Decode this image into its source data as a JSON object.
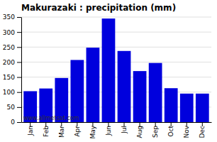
{
  "chart_data": {
    "type": "bar",
    "title": "Makurazaki : precipitation (mm)",
    "categories": [
      "Jan",
      "Feb",
      "Mar",
      "Apr",
      "May",
      "Jun",
      "Jul",
      "Aug",
      "Sep",
      "Oct",
      "Nov",
      "Dec"
    ],
    "values": [
      103,
      112,
      147,
      207,
      248,
      345,
      237,
      170,
      197,
      113,
      95,
      95
    ],
    "color": "#0000dd",
    "ylim": [
      0,
      350
    ],
    "yticks": [
      0,
      50,
      100,
      150,
      200,
      250,
      300,
      350
    ],
    "grid": true,
    "annotation": "www.allmetsat.com"
  }
}
